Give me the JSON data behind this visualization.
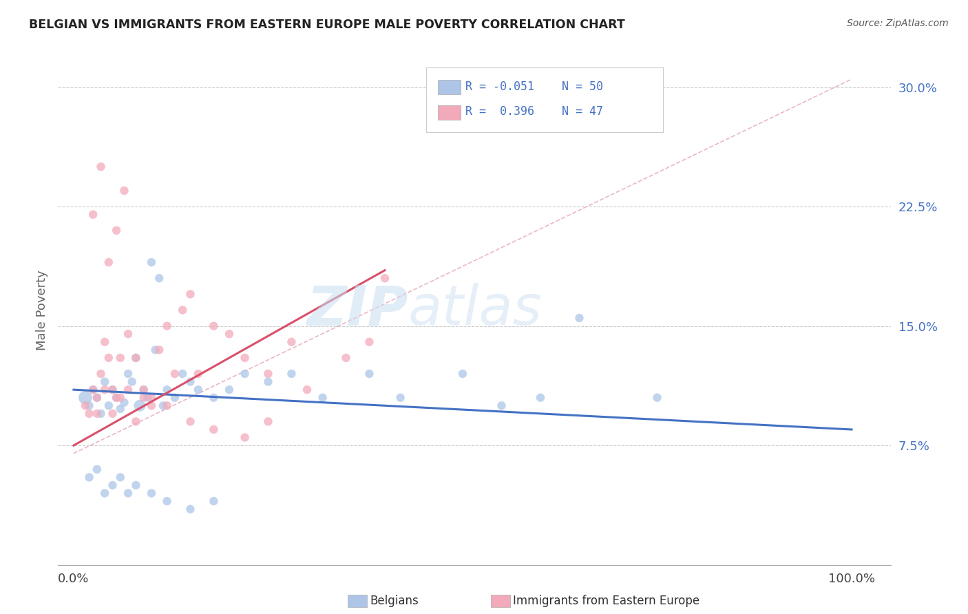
{
  "title": "BELGIAN VS IMMIGRANTS FROM EASTERN EUROPE MALE POVERTY CORRELATION CHART",
  "source": "Source: ZipAtlas.com",
  "ylabel": "Male Poverty",
  "ytick_labels": [
    "7.5%",
    "15.0%",
    "22.5%",
    "30.0%"
  ],
  "ytick_vals": [
    7.5,
    15.0,
    22.5,
    30.0
  ],
  "xtick_labels": [
    "0.0%",
    "100.0%"
  ],
  "xtick_vals": [
    0.0,
    100.0
  ],
  "belgian_color": "#adc6e8",
  "immigrant_color": "#f2aaba",
  "belgian_line_color": "#4472c4",
  "immigrant_line_color": "#d9506a",
  "trend_line_color": "#e8b0bc",
  "legend_label1": "Belgians",
  "legend_label2": "Immigrants from Eastern Europe",
  "watermark_zip": "ZIP",
  "watermark_atlas": "atlas",
  "belgians_x": [
    1.5,
    2.0,
    2.5,
    3.0,
    3.5,
    4.0,
    4.5,
    5.0,
    5.5,
    6.0,
    6.5,
    7.0,
    7.5,
    8.0,
    8.5,
    9.0,
    9.5,
    10.0,
    10.5,
    11.0,
    11.5,
    12.0,
    13.0,
    14.0,
    15.0,
    16.0,
    18.0,
    20.0,
    22.0,
    25.0,
    28.0,
    32.0,
    38.0,
    42.0,
    50.0,
    55.0,
    60.0,
    65.0,
    2.0,
    3.0,
    4.0,
    5.0,
    6.0,
    7.0,
    8.0,
    10.0,
    12.0,
    15.0,
    18.0,
    75.0
  ],
  "belgians_y": [
    10.5,
    10.0,
    11.0,
    10.5,
    9.5,
    11.5,
    10.0,
    11.0,
    10.5,
    9.8,
    10.2,
    12.0,
    11.5,
    13.0,
    10.0,
    11.0,
    10.5,
    19.0,
    13.5,
    18.0,
    10.0,
    11.0,
    10.5,
    12.0,
    11.5,
    11.0,
    10.5,
    11.0,
    12.0,
    11.5,
    12.0,
    10.5,
    12.0,
    10.5,
    12.0,
    10.0,
    10.5,
    15.5,
    5.5,
    6.0,
    4.5,
    5.0,
    5.5,
    4.5,
    5.0,
    4.5,
    4.0,
    3.5,
    4.0,
    10.5
  ],
  "belgians_size": [
    200,
    80,
    80,
    80,
    80,
    80,
    80,
    80,
    80,
    80,
    80,
    80,
    80,
    80,
    150,
    80,
    80,
    80,
    80,
    80,
    80,
    80,
    80,
    80,
    80,
    80,
    80,
    80,
    80,
    80,
    80,
    80,
    80,
    80,
    80,
    80,
    80,
    80,
    80,
    80,
    80,
    80,
    80,
    80,
    80,
    80,
    80,
    80,
    80,
    80
  ],
  "immigrants_x": [
    1.5,
    2.0,
    2.5,
    3.0,
    3.5,
    4.0,
    4.5,
    5.0,
    5.5,
    6.0,
    7.0,
    8.0,
    9.0,
    10.0,
    11.0,
    12.0,
    13.0,
    14.0,
    15.0,
    16.0,
    18.0,
    20.0,
    22.0,
    25.0,
    28.0,
    30.0,
    35.0,
    38.0,
    40.0,
    3.0,
    4.0,
    5.0,
    6.0,
    7.0,
    8.0,
    9.0,
    10.0,
    12.0,
    15.0,
    18.0,
    22.0,
    25.0,
    2.5,
    3.5,
    4.5,
    5.5,
    6.5
  ],
  "immigrants_y": [
    10.0,
    9.5,
    11.0,
    9.5,
    12.0,
    14.0,
    13.0,
    11.0,
    10.5,
    13.0,
    14.5,
    13.0,
    11.0,
    10.0,
    13.5,
    15.0,
    12.0,
    16.0,
    17.0,
    12.0,
    15.0,
    14.5,
    13.0,
    12.0,
    14.0,
    11.0,
    13.0,
    14.0,
    18.0,
    10.5,
    11.0,
    9.5,
    10.5,
    11.0,
    9.0,
    10.5,
    10.5,
    10.0,
    9.0,
    8.5,
    8.0,
    9.0,
    22.0,
    25.0,
    19.0,
    21.0,
    23.5
  ],
  "immigrants_size": [
    80,
    80,
    80,
    80,
    80,
    80,
    80,
    80,
    80,
    80,
    80,
    80,
    80,
    80,
    80,
    80,
    80,
    80,
    80,
    80,
    80,
    80,
    80,
    80,
    80,
    80,
    80,
    80,
    80,
    80,
    80,
    80,
    80,
    80,
    80,
    80,
    80,
    80,
    80,
    80,
    80,
    80,
    80,
    80,
    80,
    80,
    80
  ],
  "xlim": [
    -2,
    105
  ],
  "ylim": [
    0.0,
    32.0
  ],
  "blue_line_x": [
    0,
    100
  ],
  "blue_line_y": [
    11.0,
    8.5
  ],
  "pink_line_x": [
    0,
    40
  ],
  "pink_line_y": [
    7.5,
    18.5
  ],
  "diag_line_x": [
    0,
    100
  ],
  "diag_line_y": [
    7.0,
    30.5
  ]
}
